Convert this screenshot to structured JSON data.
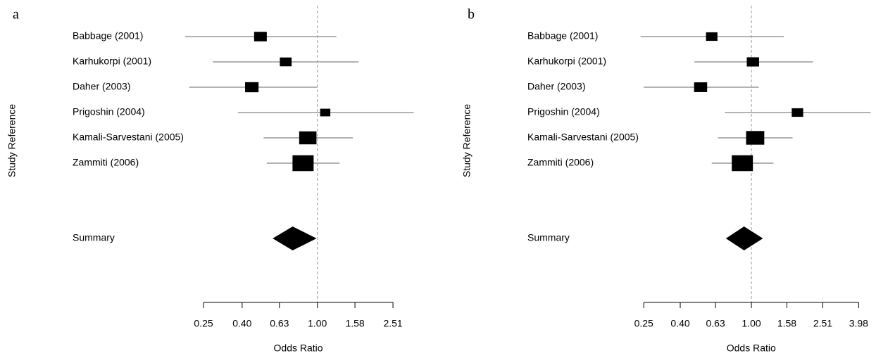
{
  "chart_data": [
    {
      "type": "forest",
      "panel_label": "a",
      "y_label": "Study Reference",
      "x_label": "Odds Ratio",
      "xscale": "log",
      "xlim": [
        0.2,
        3.3
      ],
      "xticks": [
        0.25,
        {
          "value": 0.4,
          "label": "0.40"
        },
        0.63,
        {
          "value": 1,
          "label": "1.00"
        },
        1.58,
        2.51
      ],
      "reference_line": 1,
      "categories": [
        "Babbage (2001)",
        "Karhukorpi (2001)",
        "Daher (2003)",
        "Prigoshin (2004)",
        "Kamali-Sarvestani (2005)",
        "Zammiti (2006)"
      ],
      "values": [
        0.5,
        0.68,
        0.45,
        1.1,
        0.89,
        0.84
      ],
      "ci_lower": [
        0.2,
        0.28,
        0.21,
        0.38,
        0.52,
        0.54
      ],
      "ci_upper": [
        1.26,
        1.65,
        1.0,
        3.23,
        1.54,
        1.31
      ],
      "weights": [
        5,
        4,
        6,
        2.5,
        12,
        20
      ],
      "summary": {
        "label": "Summary",
        "value": 0.74,
        "ci_lower": 0.58,
        "ci_upper": 0.99
      }
    },
    {
      "type": "forest",
      "panel_label": "b",
      "y_label": "Study Reference",
      "x_label": "Odds Ratio",
      "xscale": "log",
      "xlim": [
        0.23,
        4.8
      ],
      "xticks": [
        0.25,
        {
          "value": 0.4,
          "label": "0.40"
        },
        0.63,
        {
          "value": 1,
          "label": "1.00"
        },
        1.58,
        2.51,
        3.98
      ],
      "reference_line": 1,
      "categories": [
        "Babbage (2001)",
        "Karhukorpi (2001)",
        "Daher (2003)",
        "Prigoshin (2004)",
        "Kamali-Sarvestani (2005)",
        "Zammiti (2006)"
      ],
      "values": [
        0.6,
        1.02,
        0.52,
        1.81,
        1.05,
        0.89
      ],
      "ci_lower": [
        0.24,
        0.48,
        0.25,
        0.71,
        0.65,
        0.6
      ],
      "ci_upper": [
        1.52,
        2.21,
        1.1,
        4.65,
        1.7,
        1.33
      ],
      "weights": [
        4,
        5,
        6,
        4,
        15,
        22
      ],
      "summary": {
        "label": "Summary",
        "value": 0.91,
        "ci_lower": 0.72,
        "ci_upper": 1.16
      }
    }
  ]
}
